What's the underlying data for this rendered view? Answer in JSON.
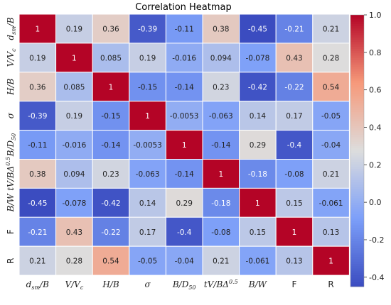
{
  "chart_data": {
    "type": "heatmap",
    "title": "Correlation Heatmap",
    "labels": [
      {
        "base": "d",
        "sub": "sm",
        "rest": "/B",
        "italic": true
      },
      {
        "base": "V/V",
        "sub": "c",
        "rest": "",
        "italic": true
      },
      {
        "base": "H/B",
        "sub": "",
        "rest": "",
        "italic": true
      },
      {
        "base": "σ",
        "sub": "",
        "rest": "",
        "italic": true
      },
      {
        "base": "B/D",
        "sub": "50",
        "rest": "",
        "italic": true
      },
      {
        "base": "tV/BΔ",
        "sup": "0.5",
        "rest": "",
        "italic": true
      },
      {
        "base": "B/W",
        "sub": "",
        "rest": "",
        "italic": true
      },
      {
        "base": "F",
        "sub": "",
        "rest": "",
        "italic": false
      },
      {
        "base": "R",
        "sub": "",
        "rest": "",
        "italic": false
      }
    ],
    "values": [
      [
        "1",
        "0.19",
        "0.36",
        "-0.39",
        "-0.11",
        "0.38",
        "-0.45",
        "-0.21",
        "0.21"
      ],
      [
        "0.19",
        "1",
        "0.085",
        "0.19",
        "-0.016",
        "0.094",
        "-0.078",
        "0.43",
        "0.28"
      ],
      [
        "0.36",
        "0.085",
        "1",
        "-0.15",
        "-0.14",
        "0.23",
        "-0.42",
        "-0.22",
        "0.54"
      ],
      [
        "-0.39",
        "0.19",
        "-0.15",
        "1",
        "-0.0053",
        "-0.063",
        "0.14",
        "0.17",
        "-0.05"
      ],
      [
        "-0.11",
        "-0.016",
        "-0.14",
        "-0.0053",
        "1",
        "-0.14",
        "0.29",
        "-0.4",
        "-0.04"
      ],
      [
        "0.38",
        "0.094",
        "0.23",
        "-0.063",
        "-0.14",
        "1",
        "-0.18",
        "-0.08",
        "0.21"
      ],
      [
        "-0.45",
        "-0.078",
        "-0.42",
        "0.14",
        "0.29",
        "-0.18",
        "1",
        "0.15",
        "-0.061"
      ],
      [
        "-0.21",
        "0.43",
        "-0.22",
        "0.17",
        "-0.4",
        "-0.08",
        "0.15",
        "1",
        "0.13"
      ],
      [
        "0.21",
        "0.28",
        "0.54",
        "-0.05",
        "-0.04",
        "0.21",
        "-0.061",
        "0.13",
        "1"
      ]
    ],
    "colorbar": {
      "min": -0.45,
      "max": 1.0,
      "ticks": [
        "1.0",
        "0.8",
        "0.6",
        "0.4",
        "0.2",
        "0.0",
        "-0.2",
        "-0.4"
      ],
      "colormap": "coolwarm"
    },
    "grid": false,
    "legend": "right"
  },
  "colors": {
    "cell_border": "#ffffff",
    "low": "#3b4cc0",
    "mid": "#dddddd",
    "high": "#b40426"
  }
}
